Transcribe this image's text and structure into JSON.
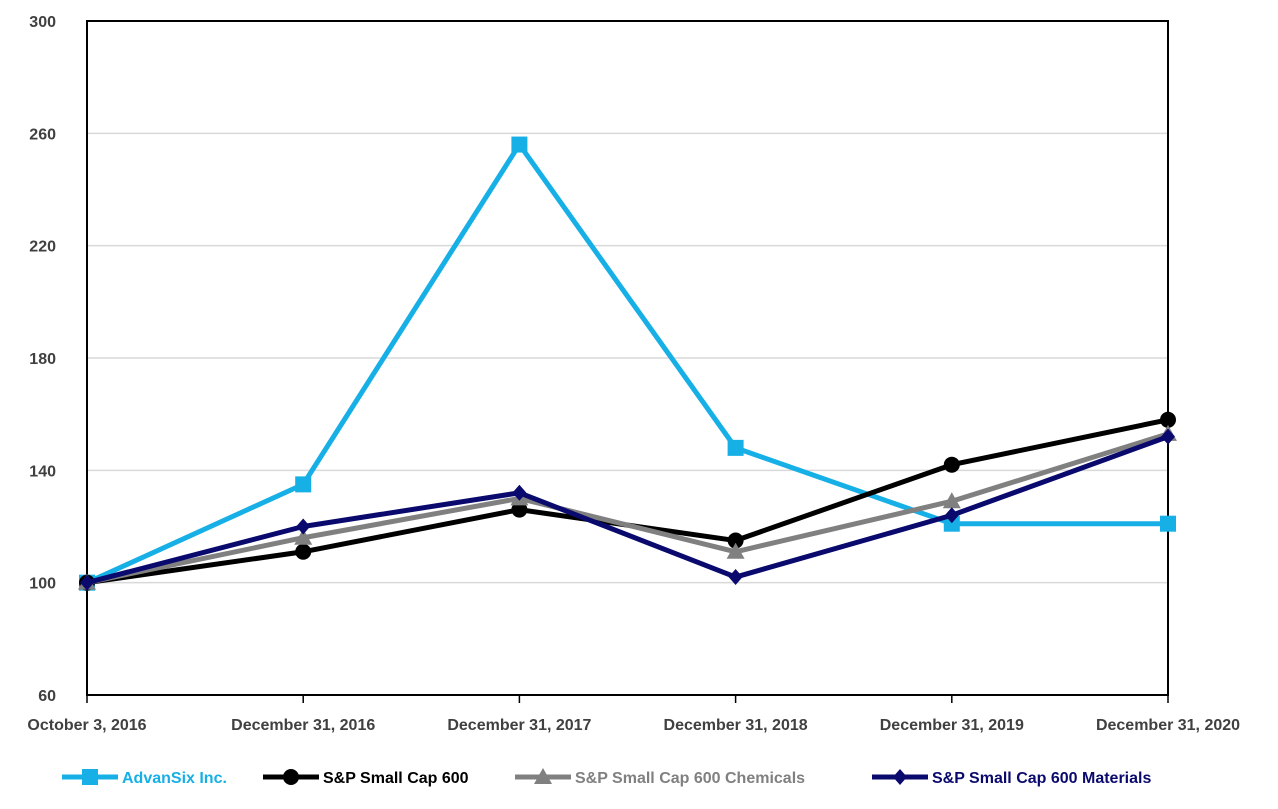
{
  "chart_data": {
    "type": "line",
    "title": "",
    "xlabel": "",
    "ylabel": "",
    "categories": [
      "October 3, 2016",
      "December 31, 2016",
      "December 31, 2017",
      "December 31, 2018",
      "December 31, 2019",
      "December 31, 2020"
    ],
    "ylim": [
      60,
      300
    ],
    "yticks": [
      60,
      100,
      140,
      180,
      220,
      260,
      300
    ],
    "grid": true,
    "legend_position": "bottom",
    "series": [
      {
        "name": "AdvanSix Inc.",
        "color": "#17B0E6",
        "marker": "square",
        "values": [
          100,
          135,
          256,
          148,
          121,
          121
        ]
      },
      {
        "name": "S&P Small Cap 600",
        "color": "#000000",
        "marker": "circle",
        "values": [
          100,
          111,
          126,
          115,
          142,
          158
        ]
      },
      {
        "name": "S&P Small Cap 600 Chemicals",
        "color": "#808080",
        "marker": "triangle",
        "values": [
          100,
          116,
          130,
          111,
          129,
          153
        ]
      },
      {
        "name": "S&P Small Cap 600 Materials",
        "color": "#0A0A6E",
        "marker": "diamond",
        "values": [
          100,
          120,
          132,
          102,
          124,
          152
        ]
      }
    ]
  }
}
